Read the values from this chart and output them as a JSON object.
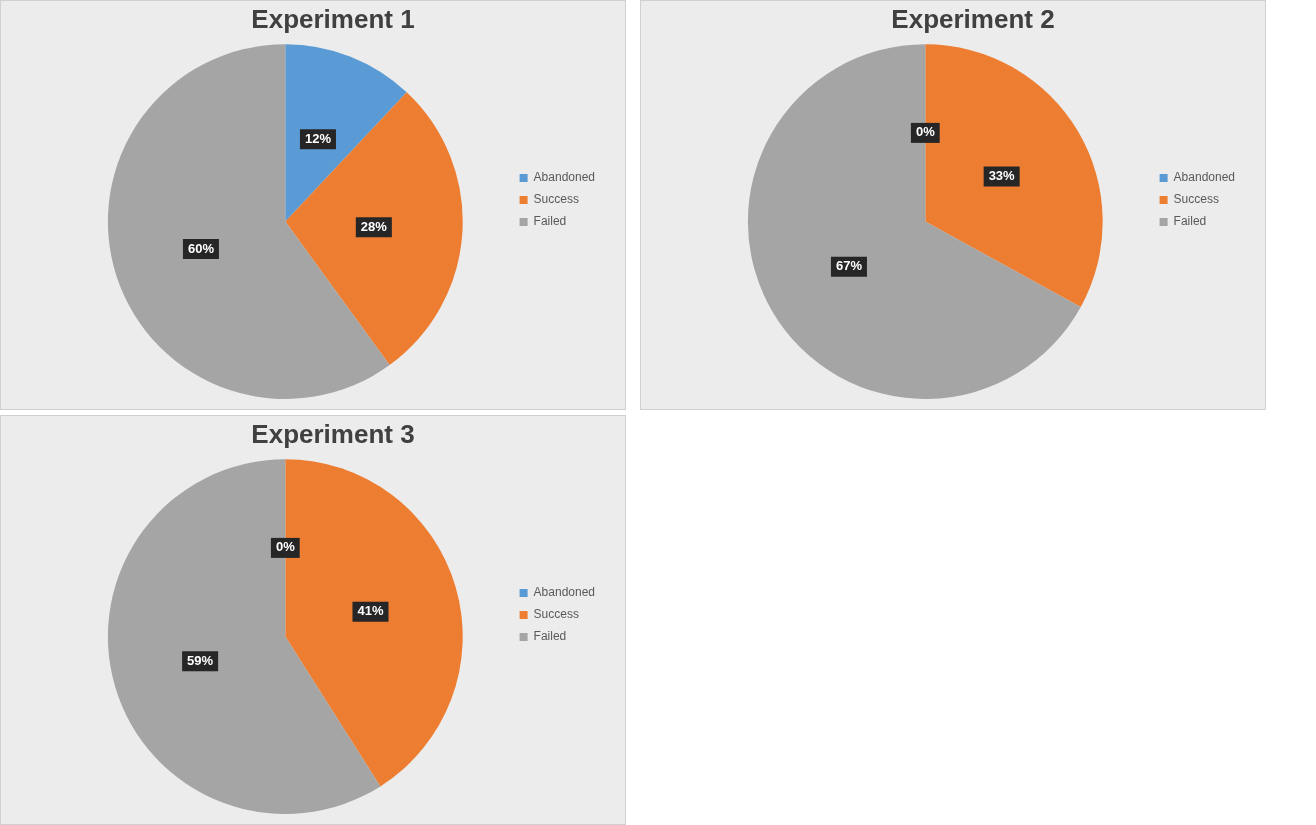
{
  "chart_data": [
    {
      "type": "pie",
      "title": "Experiment 1",
      "categories": [
        "Abandoned",
        "Success",
        "Failed"
      ],
      "values": [
        12,
        28,
        60
      ],
      "value_labels": [
        "12%",
        "28%",
        "60%"
      ],
      "colors": [
        "#5b9bd5",
        "#ed7d31",
        "#a5a5a5"
      ],
      "legend": "right"
    },
    {
      "type": "pie",
      "title": "Experiment 2",
      "categories": [
        "Abandoned",
        "Success",
        "Failed"
      ],
      "values": [
        0,
        33,
        67
      ],
      "value_labels": [
        "0%",
        "33%",
        "67%"
      ],
      "colors": [
        "#5b9bd5",
        "#ed7d31",
        "#a5a5a5"
      ],
      "legend": "right"
    },
    {
      "type": "pie",
      "title": "Experiment 3",
      "categories": [
        "Abandoned",
        "Success",
        "Failed"
      ],
      "values": [
        0,
        41,
        59
      ],
      "value_labels": [
        "0%",
        "41%",
        "59%"
      ],
      "colors": [
        "#5b9bd5",
        "#ed7d31",
        "#a5a5a5"
      ],
      "legend": "right"
    }
  ]
}
